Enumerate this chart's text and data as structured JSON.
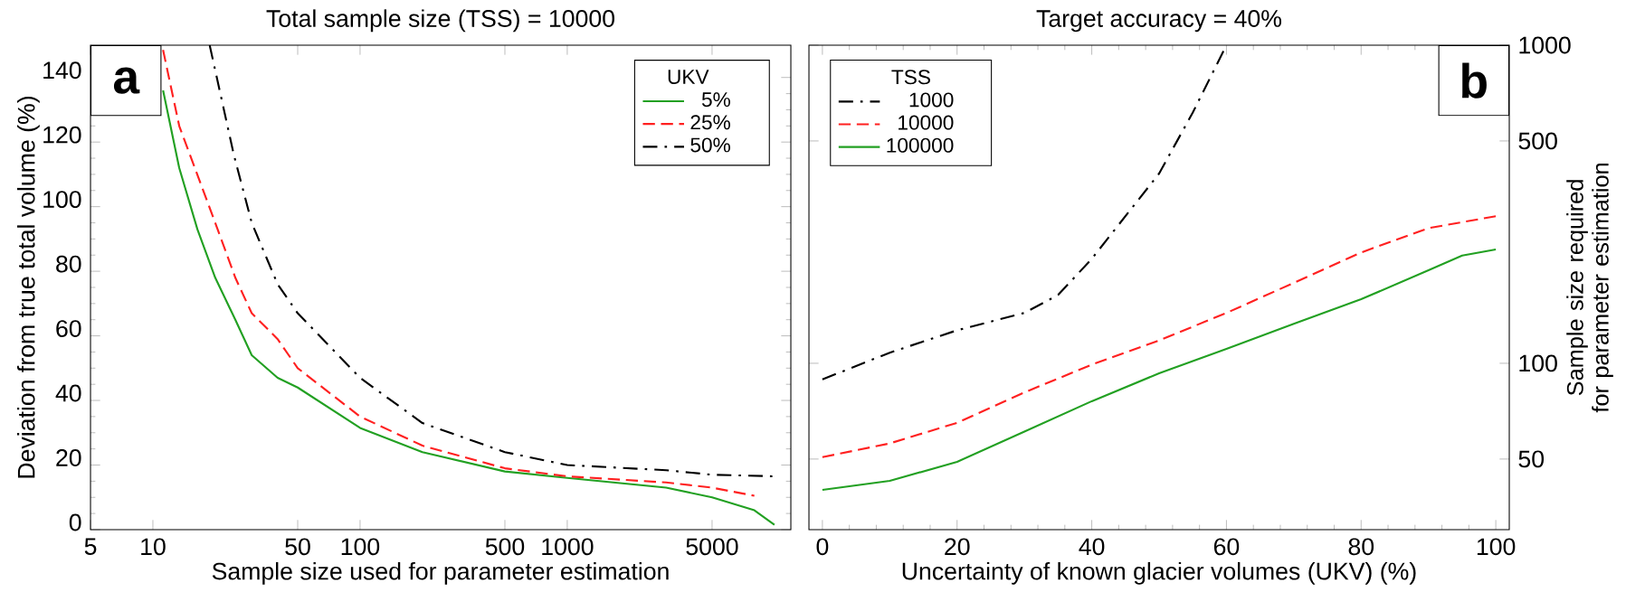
{
  "chart_data": [
    {
      "type": "line",
      "title": "Total sample size (TSS) = 10000",
      "xlabel": "Sample size used for parameter estimation",
      "ylabel": "Deviation from true total volume (%)",
      "log": "x",
      "xlim": [
        5,
        12000
      ],
      "xticks": [
        5,
        10,
        50,
        100,
        500,
        1000,
        5000
      ],
      "ylim": [
        0,
        150
      ],
      "yticks": [
        0,
        20,
        40,
        60,
        80,
        100,
        120,
        140
      ],
      "legend": "top right",
      "legend_title": "UKV",
      "annotations": [
        "a"
      ],
      "grid": false,
      "series": [
        {
          "name": "5%",
          "color": "#22a022",
          "line_style": "solid",
          "x": [
            11.2,
            13.4,
            16.4,
            20,
            25,
            30,
            40,
            50,
            100,
            200,
            500,
            1000,
            3000,
            5000,
            8000,
            10000
          ],
          "values": [
            136,
            112,
            93,
            78,
            65,
            54,
            47,
            44,
            31.5,
            24,
            18,
            16,
            13,
            10,
            6,
            1.5
          ]
        },
        {
          "name": "25%",
          "color": "#ff2020",
          "line_style": "dashed",
          "x": [
            11.2,
            13.4,
            20,
            25,
            30,
            40,
            50,
            100,
            200,
            500,
            1000,
            3000,
            5000,
            8000
          ],
          "values": [
            148.5,
            125,
            95,
            78,
            67,
            59,
            50,
            35,
            26,
            19,
            16.5,
            14.6,
            13,
            10.5
          ]
        },
        {
          "name": "50%",
          "color": "#000000",
          "line_style": "dashdot",
          "x": [
            18.8,
            24.6,
            30,
            40,
            50,
            100,
            200,
            500,
            1000,
            3000,
            5000,
            10000
          ],
          "values": [
            150,
            116,
            95,
            76,
            67,
            47,
            33,
            24,
            20,
            18.4,
            17,
            16.5
          ]
        }
      ]
    },
    {
      "type": "line",
      "title": "Target accuracy = 40%",
      "xlabel": "Uncertainty of known glacier volumes (UKV) (%)",
      "y2label": "Sample size required for parameter estimation",
      "log": "y2",
      "xlim": [
        -2,
        102
      ],
      "xticks": [
        0,
        20,
        40,
        60,
        80,
        100
      ],
      "y2lim": [
        30,
        1000
      ],
      "y2ticks": [
        50,
        100,
        500,
        1000
      ],
      "legend": "top left",
      "legend_title": "TSS",
      "annotations": [
        "b"
      ],
      "grid": false,
      "series": [
        {
          "name": "1000",
          "color": "#000000",
          "line_style": "dashdot",
          "axis": "y2",
          "x": [
            0,
            10,
            20,
            30,
            35,
            40,
            50,
            55,
            60
          ],
          "values": [
            89,
            108,
            127,
            144,
            164,
            213,
            395,
            614,
            1000
          ]
        },
        {
          "name": "10000",
          "color": "#ff2020",
          "line_style": "dashed",
          "axis": "y2",
          "x": [
            0,
            10,
            20,
            30,
            40,
            50,
            60,
            70,
            80,
            90,
            100
          ],
          "values": [
            50.7,
            56,
            65,
            81,
            99,
            118,
            144,
            179,
            223,
            266,
            290
          ]
        },
        {
          "name": "100000",
          "color": "#22a022",
          "line_style": "solid",
          "axis": "y2",
          "x": [
            0,
            10,
            20,
            30,
            40,
            50,
            60,
            70,
            80,
            90,
            95,
            100
          ],
          "values": [
            40,
            42.7,
            49,
            61,
            76,
            93,
            111,
            133,
            159,
            196,
            218,
            228
          ]
        }
      ]
    }
  ]
}
